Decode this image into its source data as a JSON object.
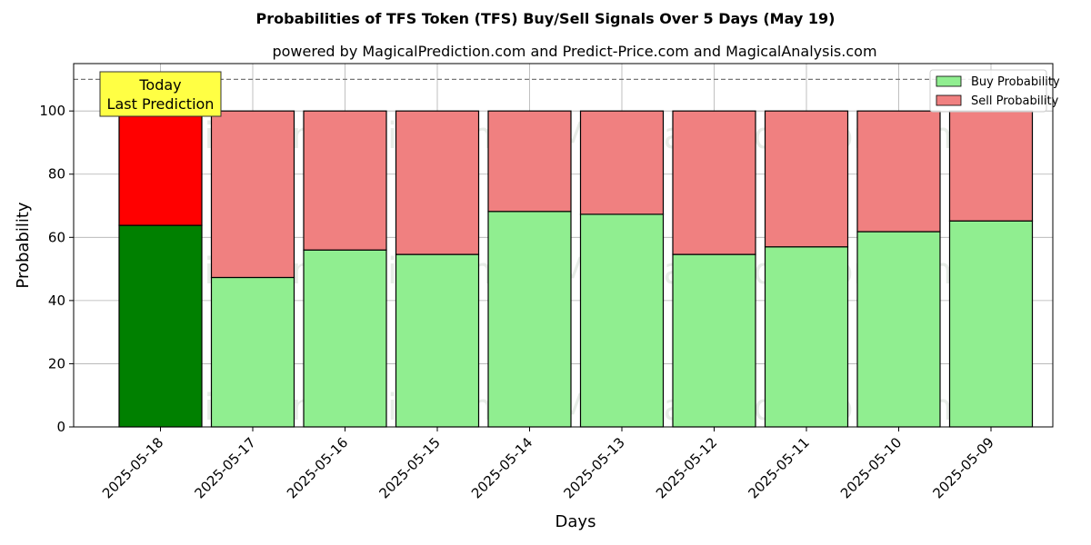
{
  "chart_data": {
    "type": "bar",
    "stacked": true,
    "title": "Probabilities of TFS Token (TFS) Buy/Sell Signals Over 5 Days (May 19)",
    "subtitle": "powered by MagicalPrediction.com and Predict-Price.com and MagicalAnalysis.com",
    "xlabel": "Days",
    "ylabel": "Probability",
    "ylim": [
      0,
      115
    ],
    "yticks": [
      0,
      20,
      40,
      60,
      80,
      100
    ],
    "reference_line": 110,
    "grid": true,
    "legend_position": "top-right",
    "categories": [
      "2025-05-18",
      "2025-05-17",
      "2025-05-16",
      "2025-05-15",
      "2025-05-14",
      "2025-05-13",
      "2025-05-12",
      "2025-05-11",
      "2025-05-10",
      "2025-05-09"
    ],
    "series": [
      {
        "name": "Buy Probability",
        "color": "#90ee90",
        "highlight_color": "#008000",
        "values": [
          63.8,
          47.3,
          56.0,
          54.6,
          68.2,
          67.3,
          54.6,
          57.0,
          61.8,
          65.2
        ]
      },
      {
        "name": "Sell Probability",
        "color": "#f08080",
        "highlight_color": "#ff0000",
        "values": [
          36.2,
          52.7,
          44.0,
          45.4,
          31.8,
          32.7,
          45.4,
          43.0,
          38.2,
          34.8
        ]
      }
    ],
    "annotation": {
      "lines": [
        "Today",
        "Last Prediction"
      ],
      "background": "#ffff44"
    },
    "watermarks": [
      "MagicalAnalysis.com",
      "MagicalPrediction.com"
    ]
  }
}
